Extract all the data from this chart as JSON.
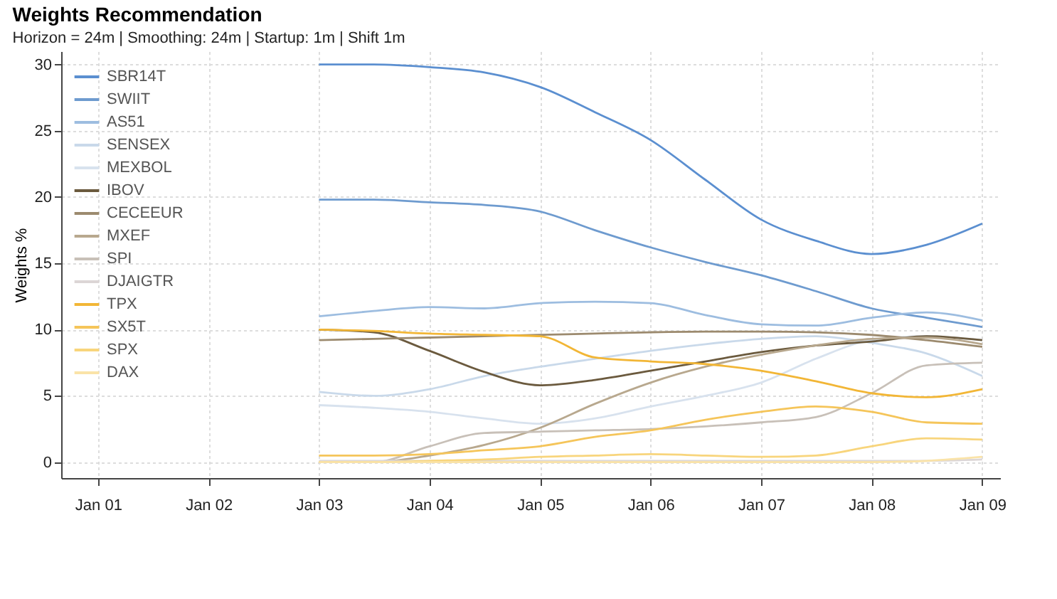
{
  "chart_data": {
    "type": "line",
    "title": "Weights Recommendation",
    "subtitle": "Horizon =  24m | Smoothing: 24m | Startup: 1m | Shift 1m",
    "ylabel": "Weights %",
    "x": [
      "2003-01",
      "2003-07",
      "2004-01",
      "2004-07",
      "2005-01",
      "2005-07",
      "2006-01",
      "2006-07",
      "2007-01",
      "2007-07",
      "2008-01",
      "2008-07",
      "2009-01"
    ],
    "xlim": [
      "2000-09",
      "2009-03"
    ],
    "xticks": [
      {
        "value": "2001-01",
        "label": "Jan 01"
      },
      {
        "value": "2002-01",
        "label": "Jan 02"
      },
      {
        "value": "2003-01",
        "label": "Jan 03"
      },
      {
        "value": "2004-01",
        "label": "Jan 04"
      },
      {
        "value": "2005-01",
        "label": "Jan 05"
      },
      {
        "value": "2006-01",
        "label": "Jan 06"
      },
      {
        "value": "2007-01",
        "label": "Jan 07"
      },
      {
        "value": "2008-01",
        "label": "Jan 08"
      },
      {
        "value": "2009-01",
        "label": "Jan 09"
      }
    ],
    "ylim": [
      -1.2,
      31
    ],
    "yticks": [
      0,
      5,
      10,
      15,
      20,
      25,
      30
    ],
    "grid": true,
    "legend": "top left",
    "series": [
      {
        "name": "SBR14T",
        "color": "#5b8fd0",
        "values": [
          30,
          30,
          29.8,
          29.4,
          28.3,
          26.4,
          24.3,
          21.3,
          18.3,
          16.7,
          15.7,
          16.4,
          18
        ]
      },
      {
        "name": "SWIIT",
        "color": "#6e9bcf",
        "values": [
          19.8,
          19.8,
          19.6,
          19.4,
          18.9,
          17.5,
          16.2,
          15.1,
          14.1,
          12.9,
          11.6,
          10.9,
          10.2
        ]
      },
      {
        "name": "AS51",
        "color": "#9dbde0",
        "values": [
          11,
          11.4,
          11.7,
          11.6,
          12,
          12.1,
          12,
          11.1,
          10.4,
          10.3,
          10.9,
          11.3,
          10.7
        ]
      },
      {
        "name": "SENSEX",
        "color": "#c9d9ea",
        "values": [
          5.3,
          5,
          5.5,
          6.5,
          7.2,
          7.8,
          8.4,
          8.9,
          9.3,
          9.5,
          9,
          8.2,
          6.5
        ]
      },
      {
        "name": "MEXBOL",
        "color": "#d8e2ee",
        "values": [
          4.3,
          4.1,
          3.8,
          3.3,
          2.9,
          3.3,
          4.2,
          5,
          6,
          7.8,
          9.2,
          9.5,
          9.2
        ]
      },
      {
        "name": "IBOV",
        "color": "#6b5a3e",
        "values": [
          10,
          9.8,
          8.4,
          6.8,
          5.8,
          6.2,
          6.9,
          7.6,
          8.3,
          8.8,
          9.1,
          9.5,
          9.2
        ]
      },
      {
        "name": "CECEEUR",
        "color": "#9c8a6e",
        "values": [
          9.2,
          9.3,
          9.4,
          9.5,
          9.6,
          9.7,
          9.8,
          9.85,
          9.85,
          9.8,
          9.6,
          9.2,
          8.7
        ]
      },
      {
        "name": "MXEF",
        "color": "#b8a88e",
        "values": [
          0,
          0,
          0.5,
          1.3,
          2.6,
          4.4,
          6,
          7.2,
          8.1,
          8.8,
          9.3,
          9.4,
          8.9
        ]
      },
      {
        "name": "SPI",
        "color": "#c8c0b8",
        "values": [
          0,
          0,
          1.2,
          2.2,
          2.3,
          2.4,
          2.5,
          2.7,
          3,
          3.4,
          5.2,
          7.3,
          7.5
        ]
      },
      {
        "name": "DJAIGTR",
        "color": "#dcd6d6",
        "values": [
          0.1,
          0.1,
          0.1,
          0.1,
          0.1,
          0.1,
          0.1,
          0.1,
          0.1,
          0.1,
          0.1,
          0.1,
          0.2
        ]
      },
      {
        "name": "TPX",
        "color": "#f2b636",
        "values": [
          10,
          9.9,
          9.7,
          9.6,
          9.5,
          7.9,
          7.6,
          7.4,
          6.9,
          6.1,
          5.2,
          4.9,
          5.5
        ]
      },
      {
        "name": "SX5T",
        "color": "#f5c55a",
        "values": [
          0.5,
          0.5,
          0.6,
          0.9,
          1.2,
          1.9,
          2.4,
          3.2,
          3.8,
          4.2,
          3.8,
          3,
          2.9
        ]
      },
      {
        "name": "SPX",
        "color": "#f8d57c",
        "values": [
          0,
          0,
          0.1,
          0.2,
          0.4,
          0.5,
          0.6,
          0.5,
          0.4,
          0.5,
          1.2,
          1.8,
          1.7
        ]
      },
      {
        "name": "DAX",
        "color": "#fae3a8",
        "values": [
          0,
          0,
          0,
          0,
          0,
          0,
          0,
          0,
          0,
          0,
          0,
          0.1,
          0.4
        ]
      }
    ]
  }
}
